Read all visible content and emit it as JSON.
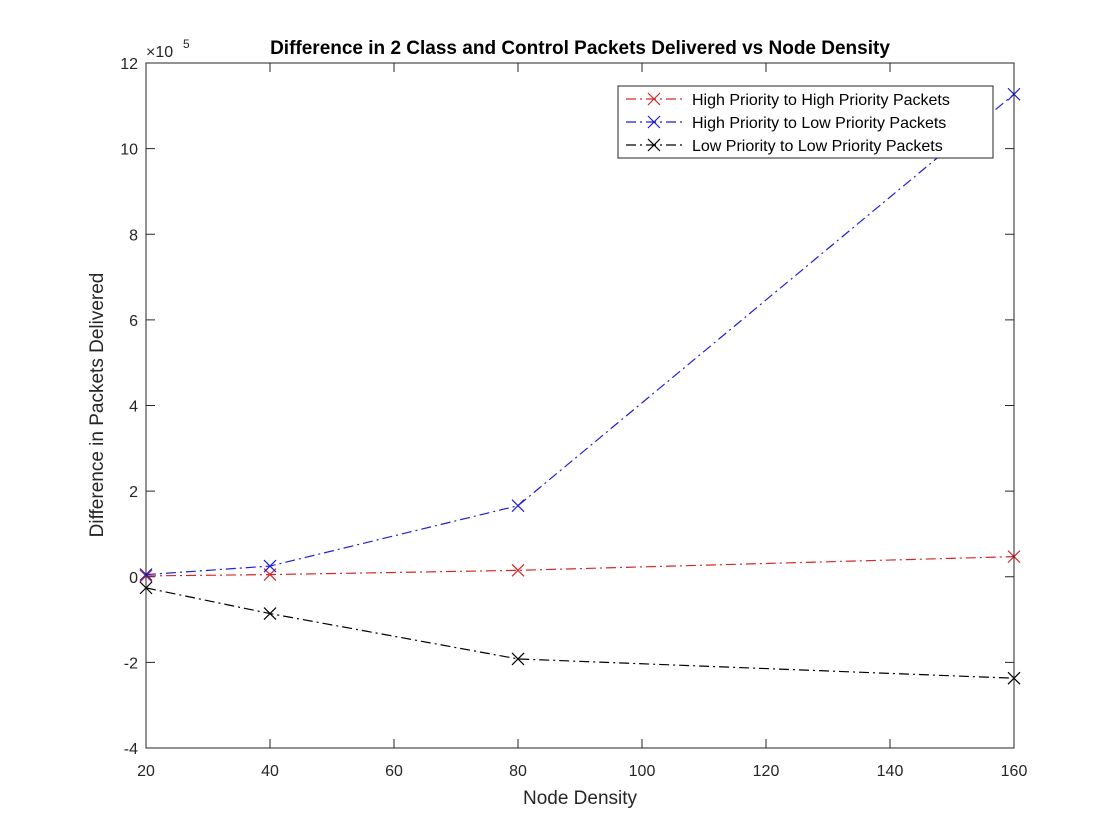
{
  "chart_data": {
    "type": "line",
    "title": "Difference in 2 Class and Control Packets Delivered vs Node Density",
    "xlabel": "Node Density",
    "ylabel": "Difference in Packets Delivered",
    "x": [
      20,
      40,
      80,
      160
    ],
    "xlim": [
      20,
      160
    ],
    "ylim": [
      -4,
      12
    ],
    "y_scale_exponent": {
      "base": "×10",
      "power": "5"
    },
    "xticks": [
      "20",
      "40",
      "60",
      "80",
      "100",
      "120",
      "140",
      "160"
    ],
    "yticks": [
      "-4",
      "-2",
      "0",
      "2",
      "4",
      "6",
      "8",
      "10",
      "12"
    ],
    "grid": false,
    "legend_position": "top-right",
    "series": [
      {
        "name": "High Priority to High Priority Packets",
        "color": "#d62728",
        "marker": "x",
        "line_style": "dash-dot",
        "values": [
          0.02,
          0.05,
          0.15,
          0.47
        ]
      },
      {
        "name": "High Priority to Low Priority Packets",
        "color": "#1f1fd6",
        "marker": "x",
        "line_style": "dash-dot",
        "values": [
          0.05,
          0.25,
          1.66,
          11.27
        ]
      },
      {
        "name": "Low Priority to Low Priority Packets",
        "color": "#000000",
        "marker": "x",
        "line_style": "dash-dot",
        "values": [
          -0.26,
          -0.86,
          -1.92,
          -2.37
        ]
      }
    ]
  }
}
